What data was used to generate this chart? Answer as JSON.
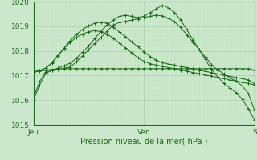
{
  "bg_color": "#cce8cc",
  "plot_bg_color": "#cce8cc",
  "grid_color_major": "#aaccaa",
  "grid_color_minor": "#bbddbb",
  "line_color": "#1a6b1a",
  "marker": "+",
  "xlabel": "Pression niveau de la mer( hPa )",
  "ylim": [
    1015,
    1020
  ],
  "yticks": [
    1015,
    1016,
    1017,
    1018,
    1019,
    1020
  ],
  "xtick_labels": [
    "Jeu",
    "Ven",
    "S"
  ],
  "xtick_positions": [
    0,
    24,
    48
  ],
  "xlim": [
    0,
    48
  ],
  "series": [
    [
      1016.0,
      1016.6,
      1017.1,
      1017.2,
      1017.3,
      1017.4,
      1017.5,
      1017.7,
      1017.95,
      1018.2,
      1018.5,
      1018.8,
      1019.05,
      1019.25,
      1019.4,
      1019.45,
      1019.4,
      1019.35,
      1019.4,
      1019.55,
      1019.7,
      1019.85,
      1019.75,
      1019.55,
      1019.25,
      1018.85,
      1018.45,
      1018.05,
      1017.65,
      1017.25,
      1016.95,
      1016.7,
      1016.5,
      1016.3,
      1016.05,
      1015.65,
      1015.2
    ],
    [
      1016.1,
      1016.75,
      1017.15,
      1017.2,
      1017.25,
      1017.3,
      1017.35,
      1017.55,
      1017.8,
      1018.05,
      1018.3,
      1018.55,
      1018.8,
      1019.05,
      1019.15,
      1019.2,
      1019.25,
      1019.3,
      1019.35,
      1019.4,
      1019.45,
      1019.42,
      1019.32,
      1019.18,
      1018.95,
      1018.65,
      1018.35,
      1018.05,
      1017.75,
      1017.45,
      1017.22,
      1017.08,
      1016.9,
      1016.78,
      1016.58,
      1016.28,
      1015.6
    ],
    [
      1017.15,
      1017.18,
      1017.22,
      1017.25,
      1017.27,
      1017.28,
      1017.28,
      1017.28,
      1017.28,
      1017.28,
      1017.28,
      1017.28,
      1017.28,
      1017.28,
      1017.28,
      1017.28,
      1017.28,
      1017.28,
      1017.28,
      1017.28,
      1017.28,
      1017.28,
      1017.28,
      1017.28,
      1017.28,
      1017.28,
      1017.28,
      1017.28,
      1017.28,
      1017.28,
      1017.28,
      1017.28,
      1017.28,
      1017.28,
      1017.28,
      1017.28,
      1017.22
    ],
    [
      1017.15,
      1017.2,
      1017.3,
      1017.5,
      1017.8,
      1018.1,
      1018.35,
      1018.55,
      1018.68,
      1018.78,
      1018.82,
      1018.78,
      1018.68,
      1018.52,
      1018.32,
      1018.12,
      1017.92,
      1017.72,
      1017.58,
      1017.48,
      1017.42,
      1017.38,
      1017.32,
      1017.28,
      1017.22,
      1017.18,
      1017.12,
      1017.08,
      1017.02,
      1016.98,
      1016.92,
      1016.88,
      1016.82,
      1016.78,
      1016.72,
      1016.68,
      1016.62
    ],
    [
      1017.15,
      1017.2,
      1017.3,
      1017.52,
      1017.82,
      1018.12,
      1018.42,
      1018.67,
      1018.87,
      1019.02,
      1019.12,
      1019.17,
      1019.12,
      1018.97,
      1018.77,
      1018.57,
      1018.37,
      1018.17,
      1017.97,
      1017.77,
      1017.62,
      1017.52,
      1017.47,
      1017.42,
      1017.37,
      1017.32,
      1017.27,
      1017.22,
      1017.17,
      1017.12,
      1017.07,
      1017.02,
      1016.97,
      1016.92,
      1016.87,
      1016.82,
      1016.67
    ]
  ]
}
